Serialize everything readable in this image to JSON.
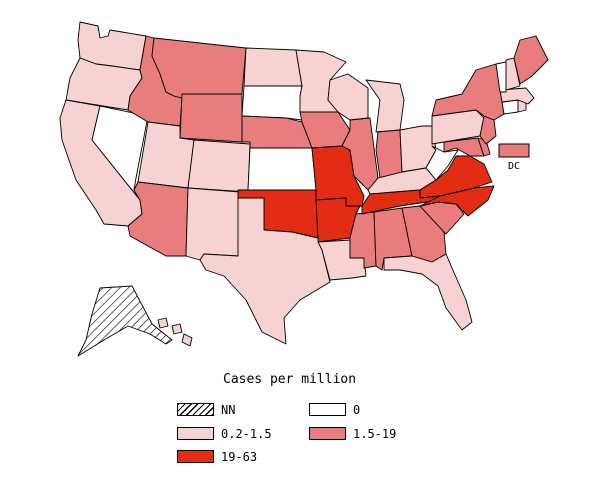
{
  "map": {
    "caption": "Cases per million",
    "dc_label": "DC",
    "categories": [
      {
        "key": "nn",
        "label": "NN",
        "fill": "hatch"
      },
      {
        "key": "zero",
        "label": "0",
        "fill": "#ffffff"
      },
      {
        "key": "low",
        "label": "0.2-1.5",
        "fill": "#f6d2d2"
      },
      {
        "key": "mid",
        "label": "1.5-19",
        "fill": "#e97c7c"
      },
      {
        "key": "high",
        "label": "19-63",
        "fill": "#e22d14"
      }
    ],
    "states": {
      "WA": "low",
      "OR": "low",
      "CA": "low",
      "NV": "zero",
      "ID": "mid",
      "MT": "mid",
      "WY": "mid",
      "UT": "low",
      "CO": "low",
      "AZ": "mid",
      "NM": "low",
      "ND": "low",
      "SD": "zero",
      "NE": "mid",
      "KS": "zero",
      "OK": "high",
      "TX": "low",
      "MN": "low",
      "IA": "mid",
      "MO": "high",
      "AR": "high",
      "LA": "low",
      "WI": "low",
      "IL": "mid",
      "MS": "mid",
      "MI": "low",
      "IN": "mid",
      "OH": "low",
      "KY": "low",
      "TN": "high",
      "AL": "mid",
      "GA": "mid",
      "FL": "low",
      "SC": "mid",
      "NC": "high",
      "VA": "high",
      "WV": "zero",
      "MD": "mid",
      "DE": "mid",
      "PA": "low",
      "NJ": "mid",
      "NY": "mid",
      "CT": "zero",
      "RI": "low",
      "MA": "low",
      "VT": "zero",
      "NH": "low",
      "ME": "mid",
      "DC": "mid",
      "AK": "nn",
      "HI": "low"
    }
  }
}
